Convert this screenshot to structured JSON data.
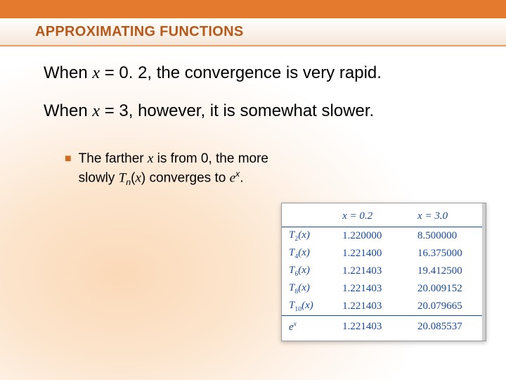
{
  "title": "APPROXIMATING FUNCTIONS",
  "line1_a": "When ",
  "line1_x": "x",
  "line1_b": " = 0. 2, the convergence is very rapid.",
  "line2_a": "When ",
  "line2_x": "x",
  "line2_b": " = 3, however, it is somewhat slower.",
  "bullet_a": "The farther ",
  "bullet_x1": "x",
  "bullet_b": " is from 0, the more slowly ",
  "bullet_T": "T",
  "bullet_n": "n",
  "bullet_c": "(",
  "bullet_x2": "x",
  "bullet_d": ") converges to ",
  "bullet_e": "e",
  "bullet_xsup": "x",
  "bullet_f": ".",
  "table": {
    "header": {
      "c0": "",
      "c1_a": "x",
      "c1_b": " = 0.2",
      "c2_a": "x",
      "c2_b": " = 3.0"
    },
    "rows": [
      {
        "t": "T",
        "s": "2",
        "p": "(x)",
        "v1": "1.220000",
        "v2": "8.500000"
      },
      {
        "t": "T",
        "s": "4",
        "p": "(x)",
        "v1": "1.221400",
        "v2": "16.375000"
      },
      {
        "t": "T",
        "s": "6",
        "p": "(x)",
        "v1": "1.221403",
        "v2": "19.412500"
      },
      {
        "t": "T",
        "s": "8",
        "p": "(x)",
        "v1": "1.221403",
        "v2": "20.009152"
      },
      {
        "t": "T",
        "s": "10",
        "p": "(x)",
        "v1": "1.221403",
        "v2": "20.079665"
      }
    ],
    "footer": {
      "e": "e",
      "x": "x",
      "v1": "1.221403",
      "v2": "20.085537"
    }
  },
  "colors": {
    "accent": "#e47a2e",
    "title_text": "#b75818",
    "table_text": "#174a9e"
  }
}
